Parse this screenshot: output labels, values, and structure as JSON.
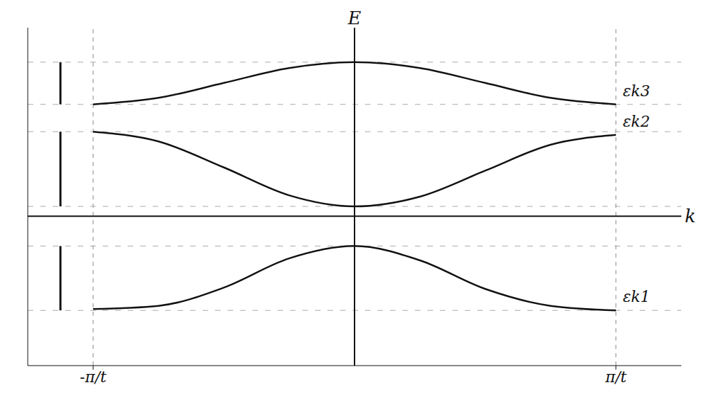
{
  "chart_data": {
    "type": "line",
    "x_label": "k",
    "y_label": "E",
    "x": [
      -1,
      -0.75,
      -0.5,
      -0.25,
      0,
      0.25,
      0.5,
      0.75,
      1
    ],
    "series": [
      {
        "name": "εk1",
        "color": "#111111",
        "values": [
          -1.43,
          -1.38,
          -1.1,
          -0.65,
          -0.46,
          -0.68,
          -1.12,
          -1.38,
          -1.45
        ]
      },
      {
        "name": "εk2",
        "color": "#111111",
        "values": [
          1.3,
          1.15,
          0.75,
          0.32,
          0.15,
          0.3,
          0.7,
          1.1,
          1.25
        ]
      },
      {
        "name": "εk3",
        "color": "#111111",
        "values": [
          1.72,
          1.82,
          2.05,
          2.28,
          2.37,
          2.28,
          2.05,
          1.82,
          1.72
        ]
      }
    ],
    "xlim": [
      -1.25,
      1.25
    ],
    "xticks": [
      {
        "value": -1,
        "label": "-π/t"
      },
      {
        "value": 1,
        "label": "π/t"
      }
    ],
    "ylim": [
      -2.3,
      2.9
    ],
    "yticks": [],
    "tick_labels": "x",
    "grid": false
  }
}
